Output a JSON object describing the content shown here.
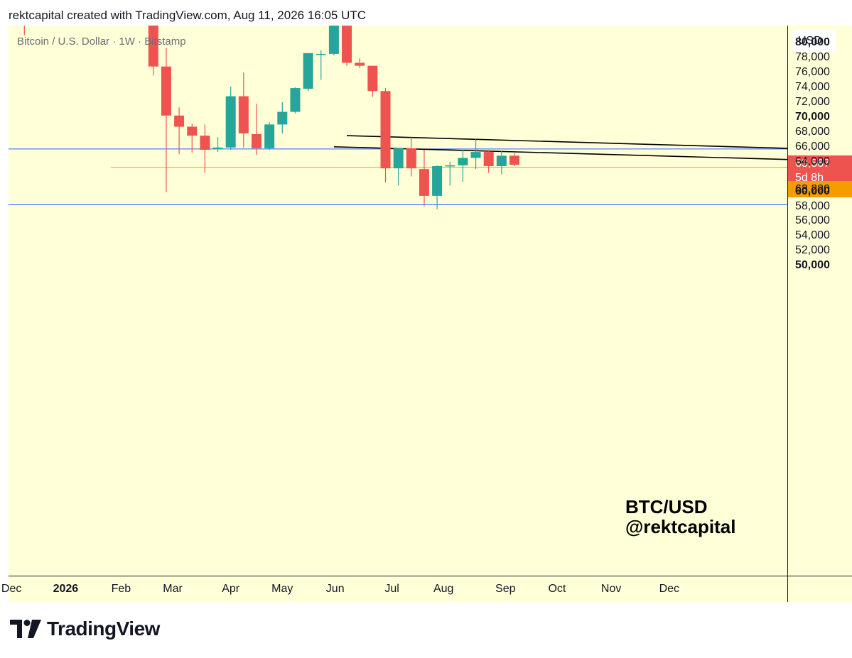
{
  "header": {
    "text": "rektcapital created with TradingView.com, Aug 11, 2026 16:05 UTC"
  },
  "chart": {
    "symbol_title": "Bitcoin / U.S. Dollar · 1W · Bitstamp",
    "watermark_line1": "BTC/USD",
    "watermark_line2": "@rektcapital",
    "currency": "USD",
    "price_badge_value": "63,567",
    "price_badge_countdown": "5d 8h",
    "level_badge": "63,220"
  },
  "colors": {
    "background": "#ffffd8",
    "up": "#26a69a",
    "down": "#ef5350",
    "support_line": "#2962ff",
    "level_line": "#f59d00",
    "trend_line": "#000000"
  },
  "chart_data": {
    "type": "candlestick",
    "title": "Bitcoin / U.S. Dollar · 1W · Bitstamp",
    "ylim": [
      49500,
      82800
    ],
    "yticks": [
      {
        "value": 80000,
        "label": "80,000",
        "bold": true
      },
      {
        "value": 78000,
        "label": "78,000",
        "bold": false
      },
      {
        "value": 76000,
        "label": "76,000",
        "bold": false
      },
      {
        "value": 74000,
        "label": "74,000",
        "bold": false
      },
      {
        "value": 72000,
        "label": "72,000",
        "bold": false
      },
      {
        "value": 70000,
        "label": "70,000",
        "bold": true
      },
      {
        "value": 68000,
        "label": "68,000",
        "bold": false
      },
      {
        "value": 66000,
        "label": "66,000",
        "bold": false
      },
      {
        "value": 64000,
        "label": "64,000",
        "bold": false
      },
      {
        "value": 60000,
        "label": "60,000",
        "bold": true
      },
      {
        "value": 58000,
        "label": "58,000",
        "bold": false
      },
      {
        "value": 56000,
        "label": "56,000",
        "bold": false
      },
      {
        "value": 54000,
        "label": "54,000",
        "bold": false
      },
      {
        "value": 52000,
        "label": "52,000",
        "bold": false
      },
      {
        "value": 50000,
        "label": "50,000",
        "bold": true
      }
    ],
    "xticks": [
      {
        "label": "Dec",
        "week": -1,
        "bold": false
      },
      {
        "label": "2026",
        "week": 3.2,
        "bold": true
      },
      {
        "label": "Feb",
        "week": 7.5,
        "bold": false
      },
      {
        "label": "Mar",
        "week": 11.5,
        "bold": false
      },
      {
        "label": "Apr",
        "week": 16.0,
        "bold": false
      },
      {
        "label": "May",
        "week": 20.0,
        "bold": false
      },
      {
        "label": "Jun",
        "week": 24.1,
        "bold": false
      },
      {
        "label": "Jul",
        "week": 28.5,
        "bold": false
      },
      {
        "label": "Aug",
        "week": 32.5,
        "bold": false
      },
      {
        "label": "Sep",
        "week": 37.3,
        "bold": false
      },
      {
        "label": "Oct",
        "week": 41.3,
        "bold": false
      },
      {
        "label": "Nov",
        "week": 45.5,
        "bold": false
      },
      {
        "label": "Dec",
        "week": 50.0,
        "bold": false
      }
    ],
    "candles": [
      {
        "w": 0,
        "o": 85000,
        "h": 88000,
        "c": 83500,
        "l": 81000
      },
      {
        "w": 10,
        "o": 83500,
        "h": 83500,
        "c": 76800,
        "l": 75600
      },
      {
        "w": 11,
        "o": 76800,
        "h": 79300,
        "c": 70200,
        "l": 59900
      },
      {
        "w": 12,
        "o": 70200,
        "h": 71300,
        "c": 68700,
        "l": 65000
      },
      {
        "w": 13,
        "o": 68700,
        "h": 69100,
        "c": 67500,
        "l": 65200
      },
      {
        "w": 14,
        "o": 67500,
        "h": 69000,
        "c": 65600,
        "l": 62500
      },
      {
        "w": 15,
        "o": 65700,
        "h": 67300,
        "c": 65900,
        "l": 65300
      },
      {
        "w": 16,
        "o": 65900,
        "h": 74100,
        "c": 72800,
        "l": 65600
      },
      {
        "w": 17,
        "o": 72800,
        "h": 76000,
        "c": 67800,
        "l": 65900
      },
      {
        "w": 18,
        "o": 67700,
        "h": 71800,
        "c": 65800,
        "l": 64900
      },
      {
        "w": 19,
        "o": 65800,
        "h": 69300,
        "c": 69000,
        "l": 65600
      },
      {
        "w": 20,
        "o": 69000,
        "h": 72000,
        "c": 70700,
        "l": 67800
      },
      {
        "w": 21,
        "o": 70700,
        "h": 74000,
        "c": 73900,
        "l": 70500
      },
      {
        "w": 22,
        "o": 73800,
        "h": 78300,
        "c": 78600,
        "l": 73500
      },
      {
        "w": 23,
        "o": 78500,
        "h": 79000,
        "c": 78500,
        "l": 75000
      },
      {
        "w": 24,
        "o": 78500,
        "h": 82500,
        "c": 82300,
        "l": 78300
      },
      {
        "w": 25,
        "o": 82300,
        "h": 82500,
        "c": 77300,
        "l": 76900
      },
      {
        "w": 26,
        "o": 77300,
        "h": 77900,
        "c": 76900,
        "l": 76600
      },
      {
        "w": 27,
        "o": 76900,
        "h": 76900,
        "c": 73500,
        "l": 72700
      },
      {
        "w": 28,
        "o": 73500,
        "h": 73900,
        "c": 63100,
        "l": 61200
      },
      {
        "w": 29,
        "o": 63100,
        "h": 65800,
        "c": 65800,
        "l": 60800
      },
      {
        "w": 30,
        "o": 65800,
        "h": 67300,
        "c": 63100,
        "l": 62000
      },
      {
        "w": 31,
        "o": 63000,
        "h": 65600,
        "c": 59400,
        "l": 58000
      },
      {
        "w": 32,
        "o": 59400,
        "h": 63500,
        "c": 63400,
        "l": 57600
      },
      {
        "w": 33,
        "o": 63400,
        "h": 64000,
        "c": 63500,
        "l": 60800
      },
      {
        "w": 34,
        "o": 63500,
        "h": 65600,
        "c": 64500,
        "l": 61300
      },
      {
        "w": 35,
        "o": 64500,
        "h": 67000,
        "c": 65300,
        "l": 63000
      },
      {
        "w": 36,
        "o": 65300,
        "h": 65600,
        "c": 63400,
        "l": 62500
      },
      {
        "w": 37,
        "o": 63400,
        "h": 65400,
        "c": 64800,
        "l": 62300
      },
      {
        "w": 38,
        "o": 64800,
        "h": 65300,
        "c": 63567,
        "l": 63400
      }
    ],
    "horizontal_lines": [
      {
        "value": 65700,
        "color": "#2962ff",
        "from_week": -3
      },
      {
        "value": 58200,
        "color": "#2962ff",
        "from_week": -3
      },
      {
        "value": 63220,
        "color": "#f59d00",
        "from_week": 6.7
      }
    ],
    "trend_lines": [
      {
        "from": {
          "w": 25,
          "v": 67500
        },
        "to": {
          "w": 61,
          "v": 65700
        }
      },
      {
        "from": {
          "w": 24,
          "v": 66000
        },
        "to": {
          "w": 61,
          "v": 64200
        }
      }
    ]
  }
}
